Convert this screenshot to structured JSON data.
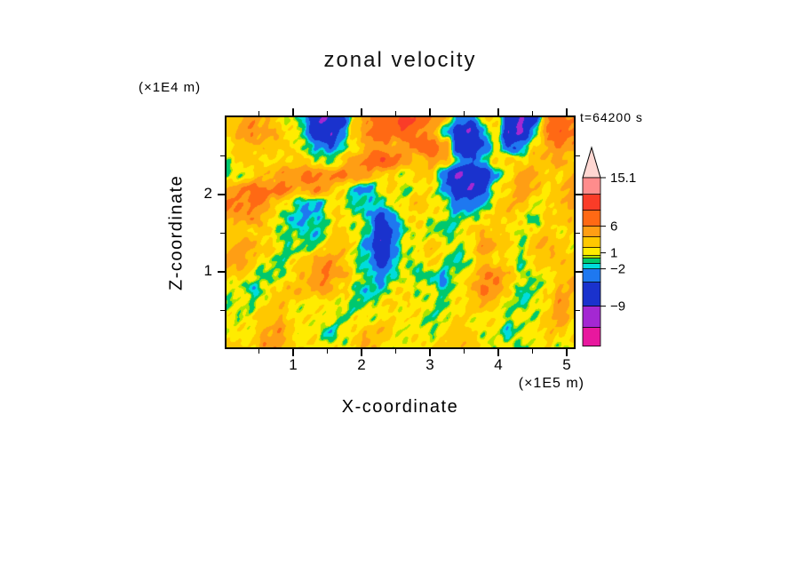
{
  "chart_data": {
    "type": "heatmap",
    "title": "zonal velocity",
    "annotation": "t=64200 s",
    "x_axis": {
      "label": "X-coordinate",
      "unit": "(×1E5 m)",
      "range": [
        0,
        5.13
      ],
      "major_ticks": [
        1,
        2,
        3,
        4,
        5
      ],
      "minor_ticks": [
        0.5,
        1.5,
        2.5,
        3.5,
        4.5
      ]
    },
    "y_axis": {
      "label": "Z-coordinate",
      "unit": "(×1E4 m)",
      "range": [
        0,
        3.02
      ],
      "major_ticks": [
        1,
        2
      ],
      "minor_ticks": [
        0.5,
        1.5,
        2.5
      ]
    },
    "colorbar": {
      "tick_labels": [
        "15.1",
        "6",
        "1",
        "−2",
        "−9"
      ],
      "tick_values": [
        15.1,
        6,
        1,
        -2,
        -9
      ],
      "range": [
        -16.5,
        15.1
      ],
      "tip_color": "#FFD7D2",
      "segments": [
        {
          "from": -16.5,
          "to": -13,
          "color": "#E8189E"
        },
        {
          "from": -13,
          "to": -9,
          "color": "#A428D2"
        },
        {
          "from": -9,
          "to": -4.5,
          "color": "#1A32CD"
        },
        {
          "from": -4.5,
          "to": -2,
          "color": "#1E78F0"
        },
        {
          "from": -2,
          "to": -1,
          "color": "#00DCDC"
        },
        {
          "from": -1,
          "to": 0,
          "color": "#00C86E"
        },
        {
          "from": 0,
          "to": 0.5,
          "color": "#AAE400"
        },
        {
          "from": 0.5,
          "to": 2,
          "color": "#FFEC00"
        },
        {
          "from": 2,
          "to": 4,
          "color": "#FFC800"
        },
        {
          "from": 4,
          "to": 6,
          "color": "#FF9E14"
        },
        {
          "from": 6,
          "to": 9,
          "color": "#FF6914"
        },
        {
          "from": 9,
          "to": 12,
          "color": "#FA3C28"
        },
        {
          "from": 12,
          "to": 15.1,
          "color": "#FF8C8C"
        }
      ]
    },
    "field": {
      "name": "zonal velocity",
      "nx": 28,
      "ny": 17,
      "values": [
        [
          2,
          3,
          5,
          4,
          2,
          1,
          -2,
          -8,
          -9,
          -6,
          2,
          6,
          8,
          9,
          10,
          8,
          6,
          3,
          -2,
          -4,
          2,
          3,
          -8,
          -9,
          -6,
          5,
          7,
          6
        ],
        [
          3,
          4,
          6,
          5,
          3,
          1,
          -1,
          -7,
          -9,
          -4,
          3,
          7,
          8,
          7,
          8,
          7,
          4,
          -2,
          -7,
          -8,
          -3,
          2,
          -9,
          -8,
          -2,
          6,
          8,
          7
        ],
        [
          2,
          3,
          4,
          3,
          2,
          2,
          1,
          -3,
          -4,
          -1,
          2,
          4,
          5,
          4,
          6,
          7,
          8,
          6,
          -6,
          -8,
          -5,
          1,
          -4,
          -3,
          2,
          5,
          6,
          5
        ],
        [
          1,
          2,
          3,
          2,
          1,
          2,
          3,
          1,
          0,
          2,
          5,
          7,
          8,
          7,
          5,
          3,
          5,
          4,
          -2,
          -4,
          -2,
          2,
          3,
          2,
          3,
          4,
          4,
          3
        ],
        [
          0,
          1,
          2,
          3,
          5,
          6,
          7,
          5,
          6,
          7,
          6,
          4,
          3,
          2,
          1,
          2,
          3,
          -4,
          -9,
          -9,
          -7,
          -2,
          2,
          4,
          5,
          3,
          2,
          4
        ],
        [
          5,
          6,
          7,
          6,
          7,
          5,
          4,
          6,
          4,
          2,
          -2,
          -3,
          1,
          2,
          0,
          1,
          2,
          -2,
          -8,
          -9,
          -5,
          1,
          3,
          5,
          4,
          2,
          3,
          5
        ],
        [
          6,
          7,
          6,
          5,
          3,
          1,
          -2,
          -3,
          1,
          2,
          -1,
          -2,
          0,
          1,
          2,
          3,
          2,
          1,
          -3,
          -4,
          -1,
          2,
          4,
          3,
          1,
          2,
          4,
          4
        ],
        [
          4,
          5,
          5,
          3,
          1,
          -1,
          -3,
          -1,
          1,
          2,
          0,
          -1,
          -6,
          -2,
          1,
          2,
          1,
          0,
          -1,
          0,
          2,
          3,
          2,
          1,
          0,
          2,
          3,
          3
        ],
        [
          2,
          3,
          2,
          2,
          1,
          0,
          -1,
          -2,
          1,
          3,
          1,
          -1,
          -8,
          -4,
          0,
          1,
          0,
          -1,
          1,
          2,
          4,
          3,
          1,
          0,
          2,
          3,
          2,
          2
        ],
        [
          3,
          4,
          5,
          3,
          1,
          -1,
          0,
          1,
          2,
          3,
          1,
          -2,
          -10,
          -3,
          1,
          2,
          3,
          1,
          0,
          2,
          5,
          4,
          2,
          1,
          3,
          4,
          3,
          2
        ],
        [
          4,
          5,
          3,
          1,
          0,
          1,
          3,
          5,
          5,
          3,
          0,
          -1,
          -7,
          -2,
          0,
          1,
          2,
          0,
          -1,
          1,
          3,
          2,
          1,
          0,
          2,
          3,
          4,
          3
        ],
        [
          3,
          2,
          1,
          0,
          -1,
          1,
          4,
          6,
          6,
          4,
          1,
          0,
          -4,
          -1,
          1,
          0,
          -1,
          -2,
          0,
          3,
          5,
          6,
          4,
          1,
          0,
          1,
          2,
          4
        ],
        [
          1,
          0,
          -1,
          1,
          2,
          3,
          4,
          5,
          4,
          2,
          0,
          -1,
          -2,
          1,
          2,
          1,
          0,
          -1,
          1,
          4,
          6,
          5,
          2,
          0,
          -1,
          2,
          4,
          5
        ],
        [
          1,
          1,
          0,
          2,
          3,
          2,
          1,
          1,
          2,
          1,
          -1,
          0,
          1,
          2,
          2,
          1,
          1,
          0,
          1,
          2,
          4,
          2,
          1,
          -1,
          1,
          2,
          5,
          3
        ],
        [
          2,
          1,
          1,
          3,
          4,
          2,
          1,
          1,
          2,
          0,
          1,
          1,
          2,
          2,
          1,
          1,
          0,
          1,
          2,
          1,
          2,
          1,
          0,
          1,
          1,
          3,
          5,
          2
        ],
        [
          1,
          2,
          1,
          4,
          5,
          3,
          1,
          1,
          -1,
          1,
          2,
          3,
          4,
          2,
          1,
          1,
          1,
          2,
          3,
          2,
          1,
          1,
          -1,
          0,
          2,
          3,
          2,
          1
        ],
        [
          2,
          3,
          2,
          5,
          6,
          3,
          2,
          1,
          1,
          1,
          3,
          4,
          3,
          1,
          1,
          1,
          2,
          3,
          4,
          3,
          2,
          1,
          1,
          -1,
          1,
          2,
          1,
          1
        ]
      ]
    }
  }
}
